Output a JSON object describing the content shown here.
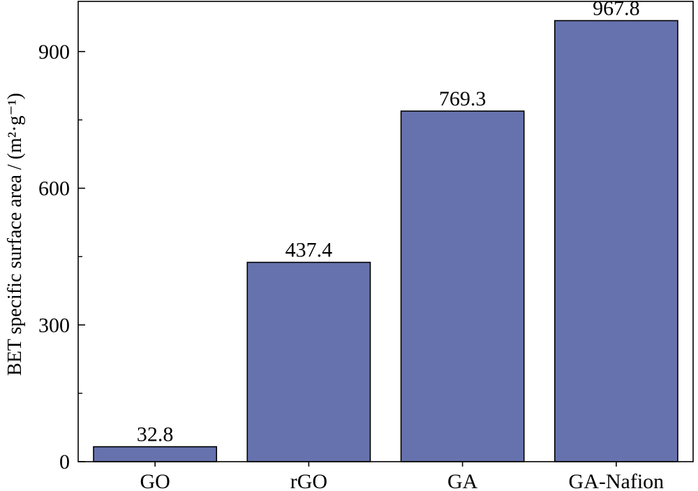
{
  "chart_data": {
    "type": "bar",
    "categories": [
      "GO",
      "rGO",
      "GA",
      "GA-Nafion"
    ],
    "values": [
      32.8,
      437.4,
      769.3,
      967.8
    ],
    "data_labels": [
      "32.8",
      "437.4",
      "769.3",
      "967.8"
    ],
    "title": "",
    "xlabel": "",
    "ylabel": "BET specific surface area / (m²·g⁻¹)",
    "ylim": [
      0,
      1010
    ],
    "yticks": [
      0,
      300,
      600,
      900
    ],
    "yticks_minor": [
      150,
      450,
      750
    ],
    "grid": false,
    "legend": "none",
    "bar_color": "#6572ad",
    "bar_edge_color": "#000000"
  }
}
